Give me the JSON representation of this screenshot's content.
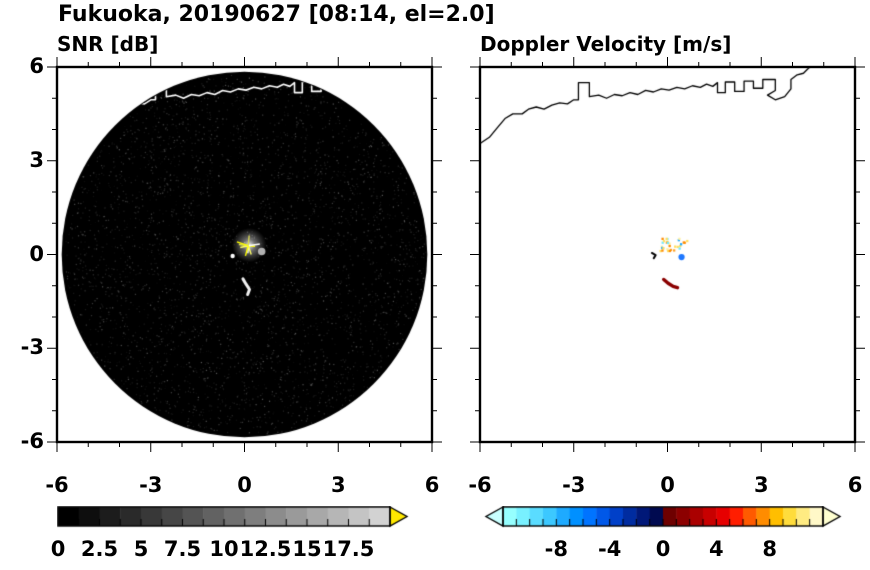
{
  "title": "Fukuoka, 20190627 [08:14, el=2.0]",
  "panels": {
    "snr": {
      "title": "SNR [dB]"
    },
    "doppler": {
      "title": "Doppler Velocity [m/s]"
    }
  },
  "chart_data": [
    {
      "type": "heatmap",
      "panel": "snr",
      "title": "SNR [dB]",
      "xlim": [
        -6,
        6
      ],
      "ylim": [
        -6,
        6
      ],
      "xticks": [
        -6,
        -3,
        0,
        3,
        6
      ],
      "yticks": [
        -6,
        -3,
        0,
        3,
        6
      ],
      "minor_ticks": [
        -5,
        -4,
        -2,
        -1,
        1,
        2,
        4,
        5
      ],
      "scan_circle": {
        "center": [
          0,
          0
        ],
        "radius": 5.85,
        "background": "#000000",
        "outside": "#ffffff"
      },
      "colorbar": {
        "values": [
          0,
          2.5,
          5,
          7.5,
          10,
          12.5,
          15,
          17.5
        ],
        "range": [
          0,
          20
        ],
        "segment_colors": [
          "#000000",
          "#0e0e0e",
          "#1c1c1c",
          "#2a2a2a",
          "#383838",
          "#464646",
          "#545454",
          "#626262",
          "#707070",
          "#7e7e7e",
          "#8c8c8c",
          "#9a9a9a",
          "#a8a8a8",
          "#b6b6b6",
          "#c4c4c4",
          "#d2d2d2"
        ],
        "over_arrow_color": "#ffe800"
      },
      "features": {
        "center_glow": {
          "x": 0.15,
          "y": 0.3,
          "radius": 0.55,
          "color": "#cccccc"
        },
        "spikes": {
          "x": 0.12,
          "y": 0.28,
          "count": 9,
          "length": 0.45,
          "colors": [
            "#ffff00",
            "#ffffff",
            "#d8d855",
            "#ffff66"
          ]
        },
        "side_patch": {
          "x": 0.55,
          "y": 0.1,
          "radius": 0.12,
          "color": "#b0b0b0"
        },
        "streak": {
          "points": [
            [
              -0.05,
              -0.78
            ],
            [
              0.05,
              -0.95
            ],
            [
              0.16,
              -1.12
            ],
            [
              0.1,
              -1.28
            ]
          ],
          "color": "#f0f0f0",
          "width": 3
        },
        "dot": {
          "x": -0.38,
          "y": -0.05,
          "color": "#ffffff"
        }
      }
    },
    {
      "type": "heatmap",
      "panel": "doppler",
      "title": "Doppler Velocity [m/s]",
      "xlim": [
        -6,
        6
      ],
      "ylim": [
        -6,
        6
      ],
      "xticks": [
        -6,
        -3,
        0,
        3,
        6
      ],
      "yticks": [
        -6,
        -3,
        0,
        3,
        6
      ],
      "minor_ticks": [
        -5,
        -4,
        -2,
        -1,
        1,
        2,
        4,
        5
      ],
      "colorbar": {
        "values": [
          -8,
          -4,
          0,
          4,
          8
        ],
        "range": [
          -12,
          12
        ],
        "segment_colors": [
          "#96ffff",
          "#78f0ff",
          "#5adcff",
          "#3cc8ff",
          "#1eaaff",
          "#0090ff",
          "#0074ff",
          "#0058e8",
          "#0040c8",
          "#002ca0",
          "#001878",
          "#000a50",
          "#6e0000",
          "#8c0000",
          "#aa0000",
          "#c80000",
          "#e60000",
          "#ff1e00",
          "#ff5a00",
          "#ff8c00",
          "#ffbe00",
          "#ffdc3c",
          "#ffeb82",
          "#fff8c8"
        ],
        "under_arrow_color": "#c8ffff",
        "over_arrow_color": "#ffffd0"
      },
      "features": {
        "cluster": {
          "x": 0.15,
          "y": 0.35,
          "rx": 0.45,
          "ry": 0.22,
          "count": 30,
          "colors": [
            "#ffdf60",
            "#ffa020",
            "#70e8ff",
            "#fff0a0",
            "#ff8c00",
            "#1eaaff"
          ]
        },
        "blue_dot": {
          "x": 0.45,
          "y": -0.08,
          "color": "#1e78ff",
          "radius": 0.1
        },
        "black_dash": {
          "points": [
            [
              -0.5,
              0.05
            ],
            [
              -0.38,
              -0.02
            ],
            [
              -0.44,
              -0.12
            ]
          ],
          "color": "#000000",
          "width": 2
        },
        "red_streak": {
          "points": [
            [
              -0.12,
              -0.8
            ],
            [
              0.02,
              -0.92
            ],
            [
              0.18,
              -1.02
            ],
            [
              0.32,
              -1.06
            ]
          ],
          "color": "#8b0000",
          "width": 3.5
        }
      }
    }
  ],
  "map": {
    "coastline_color_snr": "#ffffff",
    "coastline_color_doppler": "#000000",
    "coastline": [
      [
        -6.0,
        3.55
      ],
      [
        -5.7,
        3.75
      ],
      [
        -5.45,
        4.05
      ],
      [
        -5.2,
        4.35
      ],
      [
        -4.95,
        4.5
      ],
      [
        -4.65,
        4.5
      ],
      [
        -4.45,
        4.65
      ],
      [
        -4.2,
        4.72
      ],
      [
        -3.95,
        4.65
      ],
      [
        -3.7,
        4.78
      ],
      [
        -3.45,
        4.85
      ],
      [
        -3.2,
        4.82
      ],
      [
        -3.0,
        4.95
      ],
      [
        -2.85,
        4.95
      ],
      [
        -2.85,
        5.5
      ],
      [
        -2.5,
        5.5
      ],
      [
        -2.5,
        5.05
      ],
      [
        -2.2,
        5.1
      ],
      [
        -1.95,
        5.0
      ],
      [
        -1.7,
        5.12
      ],
      [
        -1.45,
        5.08
      ],
      [
        -1.2,
        5.18
      ],
      [
        -0.95,
        5.12
      ],
      [
        -0.7,
        5.25
      ],
      [
        -0.45,
        5.2
      ],
      [
        -0.2,
        5.3
      ],
      [
        0.05,
        5.26
      ],
      [
        0.3,
        5.35
      ],
      [
        0.55,
        5.3
      ],
      [
        0.8,
        5.4
      ],
      [
        1.05,
        5.35
      ],
      [
        1.25,
        5.45
      ],
      [
        1.45,
        5.38
      ],
      [
        1.6,
        5.5
      ],
      [
        1.6,
        5.18
      ],
      [
        1.85,
        5.18
      ],
      [
        1.85,
        5.52
      ],
      [
        2.15,
        5.52
      ],
      [
        2.15,
        5.22
      ],
      [
        2.45,
        5.22
      ],
      [
        2.45,
        5.55
      ],
      [
        2.75,
        5.55
      ],
      [
        2.75,
        5.32
      ],
      [
        3.05,
        5.32
      ],
      [
        3.05,
        5.6
      ],
      [
        3.45,
        5.6
      ],
      [
        3.45,
        5.25
      ],
      [
        3.2,
        5.1
      ],
      [
        3.45,
        4.95
      ],
      [
        3.75,
        5.05
      ],
      [
        3.95,
        5.3
      ],
      [
        3.95,
        5.6
      ],
      [
        4.15,
        5.75
      ],
      [
        4.35,
        5.8
      ],
      [
        4.55,
        6.0
      ]
    ]
  }
}
